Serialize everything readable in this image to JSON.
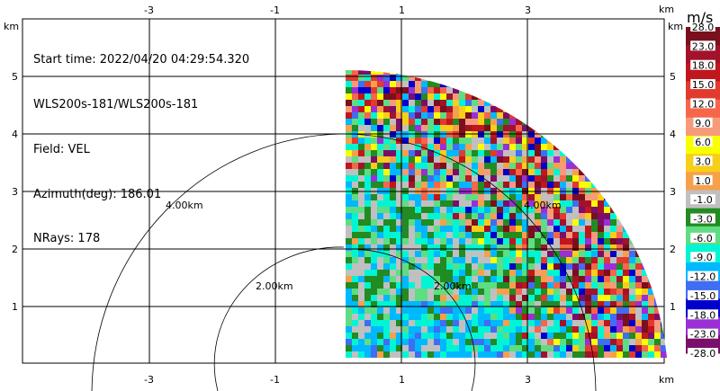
{
  "info": {
    "start_time": "Start time: 2022/04/20 04:29:54.320",
    "instrument": "WLS200s-181/WLS200s-181",
    "field": "Field: VEL",
    "azimuth": "Azimuth(deg): 186.01",
    "nrays": "NRays: 178"
  },
  "axes": {
    "x_unit": "km",
    "y_unit": "km",
    "x_ticks": [
      "-3",
      "-1",
      "1",
      "3"
    ],
    "y_ticks": [
      "5",
      "4",
      "3",
      "2",
      "1"
    ]
  },
  "range_rings": [
    "2.00km",
    "4.00km",
    "2.00km",
    "4.00km"
  ],
  "colorbar": {
    "unit": "m/s",
    "labels": [
      "28.0",
      "23.0",
      "18.0",
      "15.0",
      "12.0",
      "9.0",
      "6.0",
      "3.0",
      "1.0",
      "-1.0",
      "-3.0",
      "-6.0",
      "-9.0",
      "-12.0",
      "-15.0",
      "-18.0",
      "-23.0",
      "-28.0"
    ],
    "colors": [
      "#7a0f1e",
      "#a3122b",
      "#c0161d",
      "#e23a2f",
      "#f5664a",
      "#f79a7c",
      "#f8ff00",
      "#f7ce1a",
      "#f7a04b",
      "#c0c0c0",
      "#228b22",
      "#5fdd82",
      "#00f5d4",
      "#00b8ff",
      "#3f6ef2",
      "#0000cc",
      "#9a2fd6",
      "#7a0f6b"
    ]
  },
  "chart_data": {
    "type": "heatmap",
    "title": "",
    "field": "VEL",
    "unit": "m/s",
    "azimuth_deg": 186.01,
    "nrays": 178,
    "x_range": [
      -4.0,
      4.2
    ],
    "y_range": [
      0,
      5.5
    ],
    "max_range_km": 5.1
  }
}
